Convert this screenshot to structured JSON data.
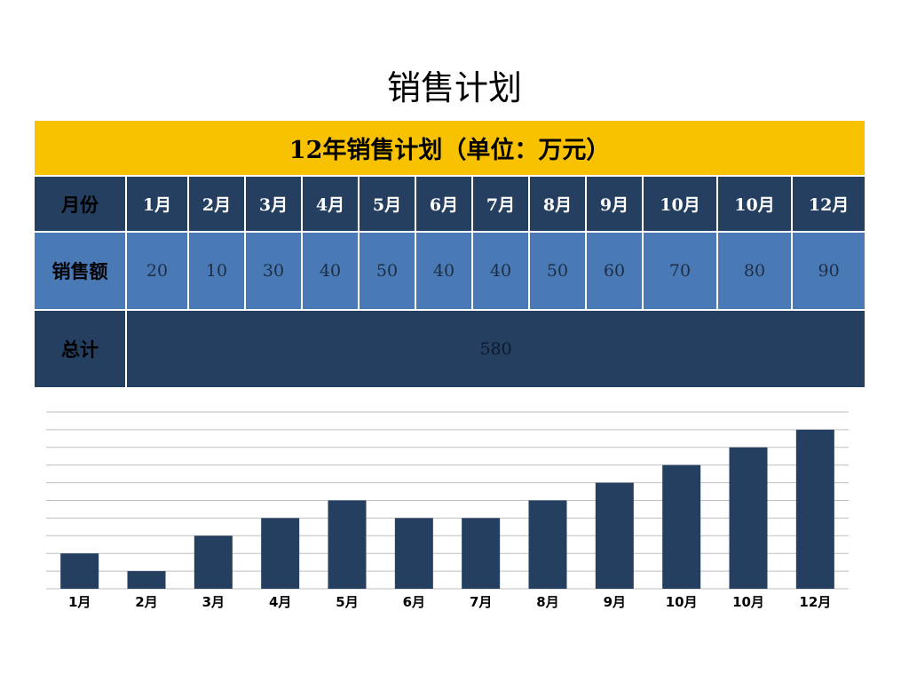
{
  "page": {
    "title": "销售计划"
  },
  "table": {
    "title": "12年销售计划（单位：万元）",
    "month_header": "月份",
    "months": [
      "1月",
      "2月",
      "3月",
      "4月",
      "5月",
      "6月",
      "7月",
      "8月",
      "9月",
      "10月",
      "10月",
      "12月"
    ],
    "sales_header": "销售额",
    "sales": [
      "20",
      "10",
      "30",
      "40",
      "50",
      "40",
      "40",
      "50",
      "60",
      "70",
      "80",
      "90"
    ],
    "total_header": "总计",
    "total": "580"
  },
  "colors": {
    "title_band": "#f9c200",
    "dark_navy": "#243f60",
    "mid_blue": "#4a7ab5",
    "bar": "#243f60",
    "grid": "#bfbfbf"
  },
  "chart_data": {
    "type": "bar",
    "categories": [
      "1月",
      "2月",
      "3月",
      "4月",
      "5月",
      "6月",
      "7月",
      "8月",
      "9月",
      "10月",
      "10月",
      "12月"
    ],
    "values": [
      20,
      10,
      30,
      40,
      50,
      40,
      40,
      50,
      60,
      70,
      80,
      90
    ],
    "title": "",
    "xlabel": "",
    "ylabel": "",
    "ylim": [
      0,
      100
    ],
    "grid": true,
    "legend": "none"
  }
}
